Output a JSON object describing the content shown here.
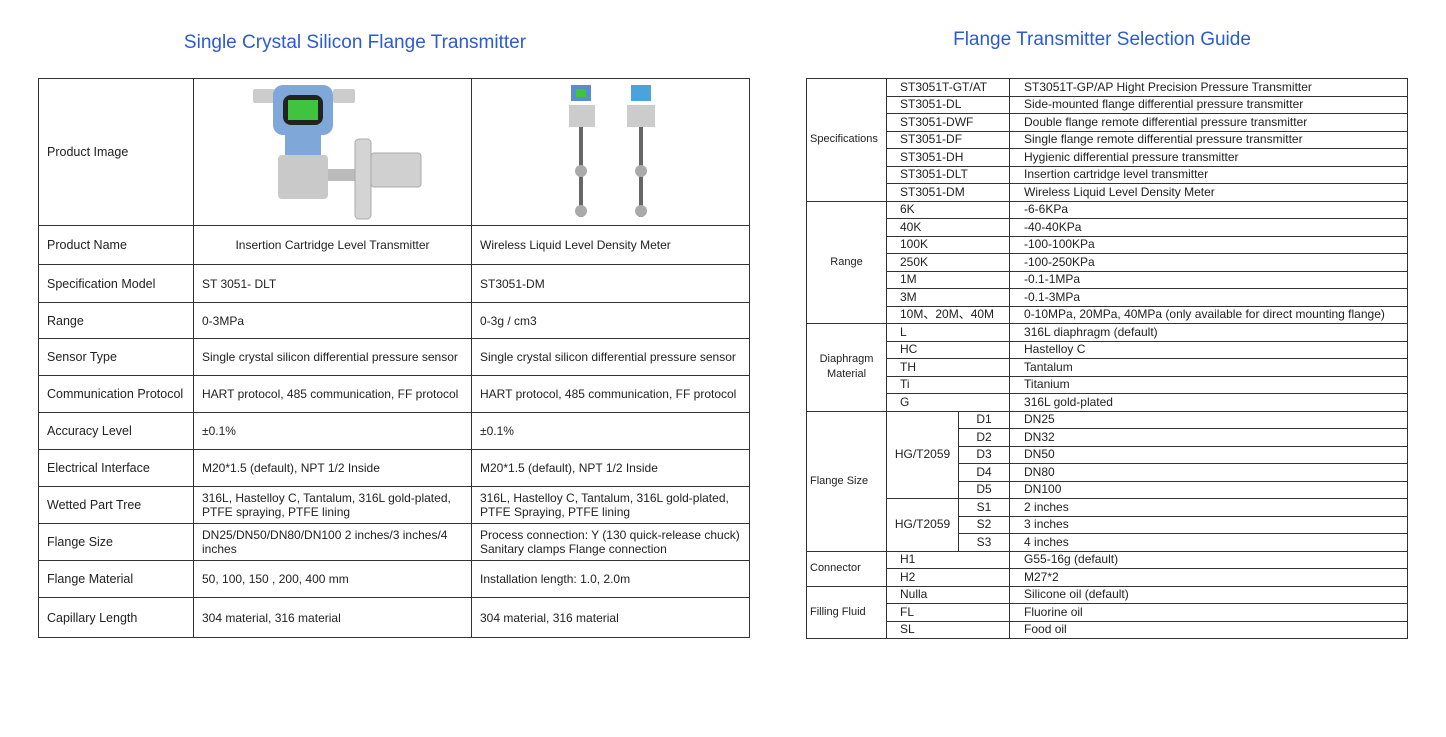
{
  "left": {
    "title": "Single Crystal Silicon Flange Transmitter",
    "rows": [
      {
        "label": "Product Image",
        "a": "",
        "b": "",
        "image": true
      },
      {
        "label": "Product Name",
        "a": "Insertion Cartridge Level Transmitter",
        "b": "Wireless Liquid Level Density Meter"
      },
      {
        "label": "Specification Model",
        "a": "ST 3051- DLT",
        "b": "ST3051-DM"
      },
      {
        "label": "Range",
        "a": "0-3MPa",
        "b": "0-3g / cm3"
      },
      {
        "label": "Sensor Type",
        "a": "Single crystal silicon differential pressure sensor",
        "b": "Single crystal silicon differential pressure sensor"
      },
      {
        "label": "Communication Protocol",
        "a": "HART protocol, 485 communication, FF protocol",
        "b": "HART protocol, 485 communication, FF protocol"
      },
      {
        "label": "Accuracy Level",
        "a": "±0.1%",
        "b": "±0.1%"
      },
      {
        "label": "Electrical Interface",
        "a": "M20*1.5 (default), NPT 1/2 Inside",
        "b": "M20*1.5 (default), NPT 1/2 Inside"
      },
      {
        "label": "Wetted Part Tree",
        "a": "316L, Hastelloy C, Tantalum, 316L gold-plated, PTFE spraying, PTFE lining",
        "b": "316L, Hastelloy C, Tantalum, 316L gold-plated, PTFE Spraying, PTFE lining"
      },
      {
        "label": "Flange Size",
        "a": "DN25/DN50/DN80/DN100 2 inches/3 inches/4 inches",
        "b": "Process connection: Y (130 quick-release chuck) Sanitary clamps Flange connection"
      },
      {
        "label": "Flange Material",
        "a": "50, 100, 150 , 200, 400 mm",
        "b": "Installation length: 1.0, 2.0m"
      },
      {
        "label": "Capillary Length",
        "a": "304 material, 316 material",
        "b": "304 material, 316 material"
      }
    ]
  },
  "right": {
    "title": "Flange Transmitter Selection Guide",
    "groups": [
      {
        "label": "Specifications",
        "rows": [
          {
            "code": "ST3051T-GT/AT",
            "desc": "ST3051T-GP/AP Hight Precision Pressure Transmitter"
          },
          {
            "code": "ST3051-DL",
            "desc": "Side-mounted flange differential pressure transmitter"
          },
          {
            "code": "ST3051-DWF",
            "desc": "Double flange remote differential pressure transmitter"
          },
          {
            "code": "ST3051-DF",
            "desc": "Single flange remote differential pressure transmitter"
          },
          {
            "code": "ST3051-DH",
            "desc": "Hygienic differential pressure transmitter"
          },
          {
            "code": "ST3051-DLT",
            "desc": "Insertion cartridge level transmitter"
          },
          {
            "code": "ST3051-DM",
            "desc": "Wireless Liquid Level Density Meter"
          }
        ]
      },
      {
        "label": "Range",
        "rows": [
          {
            "code": "6K",
            "desc": "-6-6KPa"
          },
          {
            "code": "40K",
            "desc": "-40-40KPa"
          },
          {
            "code": "100K",
            "desc": "-100-100KPa"
          },
          {
            "code": "250K",
            "desc": "-100-250KPa"
          },
          {
            "code": "1M",
            "desc": "-0.1-1MPa"
          },
          {
            "code": "3M",
            "desc": "-0.1-3MPa"
          },
          {
            "code": "10M、20M、40M",
            "desc": "0-10MPa, 20MPa, 40MPa (only available for direct mounting flange)"
          }
        ]
      },
      {
        "label": "Diaphragm Material",
        "rows": [
          {
            "code": "L",
            "desc": "316L diaphragm (default)"
          },
          {
            "code": "HC",
            "desc": "Hastelloy C"
          },
          {
            "code": "TH",
            "desc": "Tantalum"
          },
          {
            "code": "Ti",
            "desc": "Titanium"
          },
          {
            "code": "G",
            "desc": "316L gold-plated"
          }
        ]
      },
      {
        "label": "Flange Size",
        "subgroups": [
          {
            "label": "HG/T2059",
            "rows": [
              {
                "code": "D1",
                "desc": "DN25"
              },
              {
                "code": "D2",
                "desc": "DN32"
              },
              {
                "code": "D3",
                "desc": "DN50"
              },
              {
                "code": "D4",
                "desc": "DN80"
              },
              {
                "code": "D5",
                "desc": "DN100"
              }
            ]
          },
          {
            "label": "HG/T2059",
            "rows": [
              {
                "code": "S1",
                "desc": "2 inches"
              },
              {
                "code": "S2",
                "desc": "3 inches"
              },
              {
                "code": "S3",
                "desc": "4 inches"
              }
            ]
          }
        ]
      },
      {
        "label": "Connector",
        "rows": [
          {
            "code": "H1",
            "desc": "G55-16g (default)"
          },
          {
            "code": "H2",
            "desc": "M27*2"
          }
        ]
      },
      {
        "label": "Filling Fluid",
        "rows": [
          {
            "code": "Nulla",
            "desc": "Silicone oil (default)"
          },
          {
            "code": "FL",
            "desc": "Fluorine oil"
          },
          {
            "code": "SL",
            "desc": "Food oil"
          }
        ]
      }
    ]
  }
}
